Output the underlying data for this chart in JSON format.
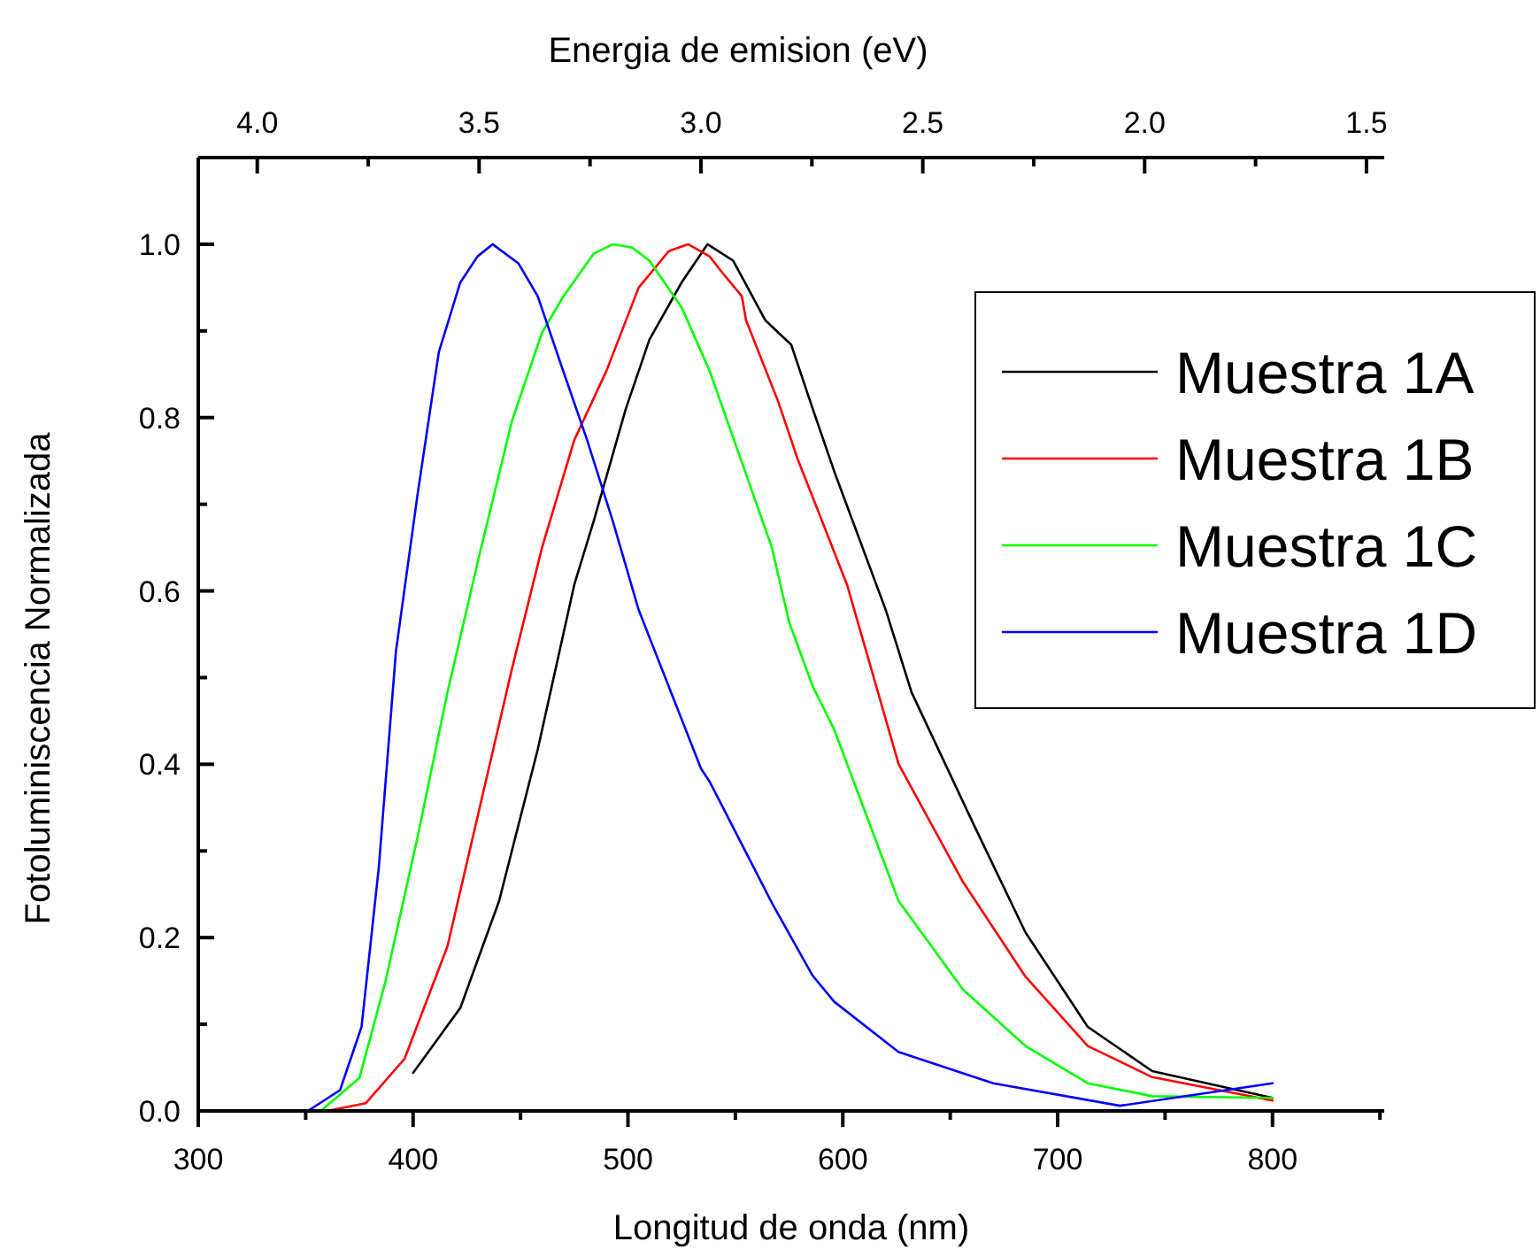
{
  "chart_data": {
    "type": "line",
    "xlabel": "Longitud de onda (nm)",
    "ylabel": "Fotoluminiscencia Normalizada",
    "x2label": "Energia de emision (eV)",
    "xlim": [
      300,
      852
    ],
    "ylim": [
      0,
      1.1
    ],
    "x2lim": [
      4.133,
      1.46
    ],
    "xticks": [
      300,
      {
        "value": 350,
        "label": null
      },
      400,
      {
        "value": 450,
        "label": null
      },
      500,
      {
        "value": 550,
        "label": null
      },
      600,
      {
        "value": 650,
        "label": null
      },
      700,
      {
        "value": 750,
        "label": null
      },
      800,
      {
        "value": 850,
        "label": null
      }
    ],
    "yticks": [
      {
        "value": 0,
        "label": "0.0"
      },
      {
        "value": 0.1,
        "label": null
      },
      {
        "value": 0.2,
        "label": "0.2"
      },
      {
        "value": 0.3,
        "label": null
      },
      {
        "value": 0.4,
        "label": "0.4"
      },
      {
        "value": 0.5,
        "label": null
      },
      {
        "value": 0.6,
        "label": "0.6"
      },
      {
        "value": 0.7,
        "label": null
      },
      {
        "value": 0.8,
        "label": "0.8"
      },
      {
        "value": 0.9,
        "label": null
      },
      {
        "value": 1,
        "label": "1.0"
      }
    ],
    "x2ticks": [
      {
        "value": 4,
        "label": "4.0"
      },
      {
        "value": 3.75,
        "label": null
      },
      3.5,
      {
        "value": 3.25,
        "label": null
      },
      {
        "value": 3,
        "label": "3.0"
      },
      {
        "value": 2.75,
        "label": null
      },
      2.5,
      {
        "value": 2.25,
        "label": null
      },
      {
        "value": 2,
        "label": "2.0"
      },
      {
        "value": 1.75,
        "label": null
      },
      1.5
    ],
    "grid": false,
    "legend": "top right",
    "marker": "none",
    "line_style": "solid",
    "series": [
      {
        "name": "Muestra 1A",
        "color": "#000000",
        "x": [
          400,
          422,
          440,
          458,
          475,
          484,
          499,
          510,
          525,
          537,
          549,
          564,
          576,
          586,
          596,
          620,
          632,
          661,
          685,
          714,
          744,
          800
        ],
        "values": [
          0.044,
          0.119,
          0.242,
          0.417,
          0.607,
          0.68,
          0.81,
          0.89,
          0.956,
          1.0,
          0.981,
          0.912,
          0.884,
          0.81,
          0.738,
          0.578,
          0.483,
          0.33,
          0.206,
          0.097,
          0.046,
          0.015
        ]
      },
      {
        "name": "Muestra 1B",
        "color": "#ff0000",
        "x": [
          360,
          378,
          396,
          416,
          431,
          446,
          460,
          475,
          490,
          505,
          519,
          528,
          538,
          543,
          553,
          555,
          570,
          579,
          586,
          602,
          626,
          656,
          685,
          714,
          744,
          800
        ],
        "values": [
          0,
          0.009,
          0.06,
          0.19,
          0.35,
          0.51,
          0.65,
          0.774,
          0.854,
          0.95,
          0.992,
          1.0,
          0.986,
          0.97,
          0.94,
          0.912,
          0.818,
          0.752,
          0.708,
          0.607,
          0.4,
          0.264,
          0.155,
          0.075,
          0.039,
          0.012
        ]
      },
      {
        "name": "Muestra 1C",
        "color": "#00ff00",
        "x": [
          357,
          375,
          387,
          402,
          416,
          431,
          446,
          460,
          470,
          484,
          493,
          502,
          510,
          525,
          538,
          540,
          567,
          575,
          586,
          596,
          626,
          656,
          685,
          714,
          744,
          800
        ],
        "values": [
          0,
          0.038,
          0.148,
          0.315,
          0.483,
          0.643,
          0.796,
          0.898,
          0.94,
          0.989,
          1.0,
          0.996,
          0.981,
          0.927,
          0.854,
          0.84,
          0.65,
          0.564,
          0.49,
          0.44,
          0.242,
          0.14,
          0.075,
          0.032,
          0.017,
          0.015
        ]
      },
      {
        "name": "Muestra 1D",
        "color": "#0000ff",
        "x": [
          351,
          366,
          376,
          384,
          392,
          402,
          412,
          422,
          430,
          437,
          449,
          458,
          469,
          481,
          493,
          505,
          534,
          538,
          567,
          586,
          596,
          626,
          670,
          729,
          800
        ],
        "values": [
          0,
          0.024,
          0.097,
          0.28,
          0.53,
          0.71,
          0.876,
          0.956,
          0.986,
          1.0,
          0.978,
          0.94,
          0.86,
          0.774,
          0.68,
          0.578,
          0.395,
          0.38,
          0.24,
          0.156,
          0.126,
          0.068,
          0.032,
          0.006,
          0.032
        ]
      }
    ]
  }
}
